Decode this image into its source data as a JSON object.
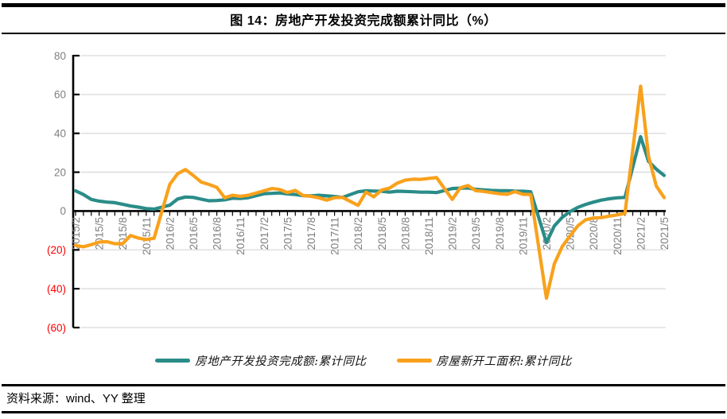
{
  "title": "图 14：房地产开发投资完成额累计同比（%）",
  "source": "资料来源：wind、YY 整理",
  "colors": {
    "investment_line": "#2A8C88",
    "new_starts_line": "#F9A11C",
    "axis": "#000000",
    "gridline": "#D9D9D9",
    "tick_label": "#7F7F7F",
    "negative_tick_label": "#FF0000"
  },
  "chart_data": {
    "type": "line",
    "title": "图 14：房地产开发投资完成额累计同比（%）",
    "xlabel": "",
    "ylabel": "",
    "ylim": [
      -60,
      80
    ],
    "y_ticks": [
      80,
      60,
      40,
      20,
      0,
      -20,
      -40,
      -60
    ],
    "negative_label_style": "red-parentheses",
    "grid": true,
    "legend_position": "bottom",
    "x": [
      "2015/2",
      "2015/3",
      "2015/4",
      "2015/5",
      "2015/6",
      "2015/7",
      "2015/8",
      "2015/9",
      "2015/10",
      "2015/11",
      "2015/12",
      "2016/2",
      "2016/3",
      "2016/4",
      "2016/5",
      "2016/6",
      "2016/7",
      "2016/8",
      "2016/9",
      "2016/10",
      "2016/11",
      "2016/12",
      "2017/2",
      "2017/3",
      "2017/4",
      "2017/5",
      "2017/6",
      "2017/7",
      "2017/8",
      "2017/9",
      "2017/10",
      "2017/11",
      "2017/12",
      "2018/2",
      "2018/3",
      "2018/4",
      "2018/5",
      "2018/6",
      "2018/7",
      "2018/8",
      "2018/9",
      "2018/10",
      "2018/11",
      "2018/12",
      "2019/2",
      "2019/3",
      "2019/4",
      "2019/5",
      "2019/6",
      "2019/7",
      "2019/8",
      "2019/9",
      "2019/10",
      "2019/11",
      "2019/12",
      "2020/2",
      "2020/3",
      "2020/4",
      "2020/5",
      "2020/6",
      "2020/7",
      "2020/8",
      "2020/9",
      "2020/10",
      "2020/11",
      "2020/12",
      "2021/2",
      "2021/3",
      "2021/4",
      "2021/5"
    ],
    "x_tick_labels": [
      "2015/2",
      "2015/5",
      "2015/8",
      "2015/11",
      "2016/2",
      "2016/5",
      "2016/8",
      "2016/11",
      "2017/2",
      "2017/5",
      "2017/8",
      "2017/11",
      "2018/2",
      "2018/5",
      "2018/8",
      "2018/11",
      "2019/2",
      "2019/5",
      "2019/8",
      "2019/11",
      "2020/2",
      "2020/5",
      "2020/8",
      "2020/11",
      "2021/2",
      "2021/5"
    ],
    "series": [
      {
        "name": "房地产开发投资完成额:累计同比",
        "color": "#2A8C88",
        "values": [
          10.4,
          8.5,
          6.0,
          5.1,
          4.6,
          4.3,
          3.5,
          2.6,
          2.0,
          1.3,
          1.0,
          3.0,
          6.2,
          7.2,
          7.0,
          6.1,
          5.3,
          5.4,
          5.8,
          6.6,
          6.5,
          6.9,
          8.9,
          9.1,
          9.3,
          8.8,
          8.5,
          7.9,
          7.8,
          8.1,
          7.8,
          7.5,
          7.0,
          9.9,
          10.4,
          10.3,
          10.2,
          9.7,
          10.2,
          10.1,
          9.9,
          9.7,
          9.7,
          9.5,
          11.6,
          11.8,
          11.9,
          11.2,
          10.9,
          10.6,
          10.5,
          10.5,
          10.3,
          10.2,
          9.9,
          -16.3,
          -7.7,
          -3.3,
          -0.3,
          1.9,
          3.4,
          4.6,
          5.6,
          6.3,
          6.8,
          7.0,
          38.3,
          25.6,
          21.6,
          18.3
        ]
      },
      {
        "name": "房屋新开工面积:累计同比",
        "color": "#F9A11C",
        "values": [
          -17.7,
          -18.4,
          -17.3,
          -16.0,
          -15.8,
          -16.8,
          -16.8,
          -12.6,
          -13.9,
          -14.7,
          -14.0,
          13.7,
          19.2,
          21.4,
          18.3,
          14.9,
          13.7,
          12.2,
          6.8,
          8.1,
          7.6,
          8.1,
          10.4,
          11.6,
          11.1,
          9.5,
          10.6,
          8.0,
          7.6,
          6.8,
          5.6,
          6.9,
          7.0,
          2.9,
          9.7,
          7.3,
          10.8,
          11.8,
          14.4,
          15.9,
          16.4,
          16.3,
          16.8,
          17.2,
          6.0,
          11.9,
          13.1,
          10.5,
          10.1,
          9.5,
          8.9,
          8.6,
          10.0,
          8.6,
          8.5,
          -44.9,
          -27.2,
          -18.4,
          -12.8,
          -7.6,
          -4.5,
          -3.6,
          -3.4,
          -2.6,
          -2.0,
          -1.2,
          64.3,
          28.2,
          12.9,
          6.9
        ]
      }
    ]
  }
}
